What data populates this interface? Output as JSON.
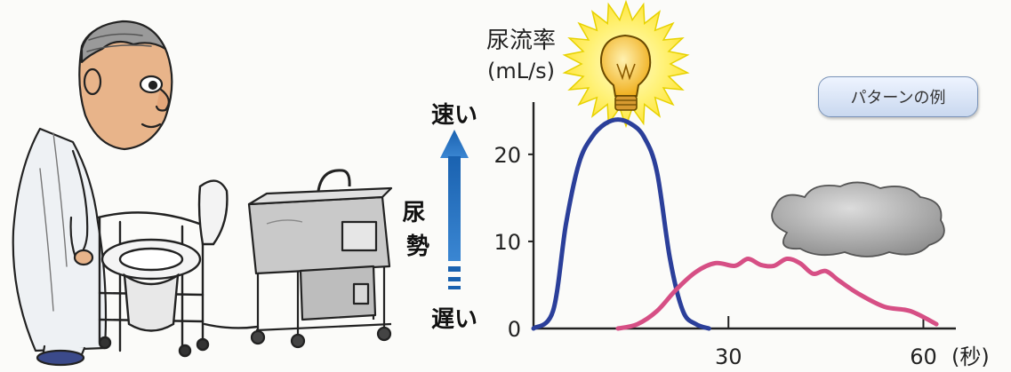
{
  "rate_label": {
    "line1": "尿流率",
    "line2": "(mL/s)"
  },
  "badge_label": "パターンの例",
  "arrow": {
    "top_label": "速い",
    "bottom_label": "遅い",
    "middle_label": "尿勢",
    "color": "#1a62b0"
  },
  "chart_data": {
    "type": "line",
    "x_unit_label": "(秒)",
    "x_ticks": [
      30,
      60
    ],
    "y_ticks": [
      0,
      10,
      20
    ],
    "xlim": [
      0,
      65
    ],
    "ylim": [
      0,
      26
    ],
    "series": [
      {
        "color": "#2b3f9a",
        "x": [
          0,
          3,
          5,
          7,
          9,
          11,
          13,
          15,
          17,
          19,
          21,
          23,
          25,
          27
        ],
        "y": [
          0,
          2,
          12,
          19,
          22,
          23.5,
          24,
          23.5,
          22,
          18,
          8,
          2,
          0.5,
          0
        ]
      },
      {
        "color": "#d64f85",
        "x": [
          13,
          16,
          19,
          22,
          25,
          28,
          31,
          33,
          35,
          37,
          39,
          41,
          43,
          45,
          47,
          50,
          54,
          58,
          62
        ],
        "y": [
          0,
          0.5,
          2,
          4.5,
          6.5,
          7.5,
          7.2,
          8,
          7.3,
          7.2,
          8,
          7.5,
          6.3,
          6.6,
          5.5,
          4,
          2.5,
          2,
          0.5
        ]
      }
    ],
    "grid": false
  },
  "icons": {
    "bulb": "light-bulb-icon",
    "cloud": "cloud-icon"
  }
}
